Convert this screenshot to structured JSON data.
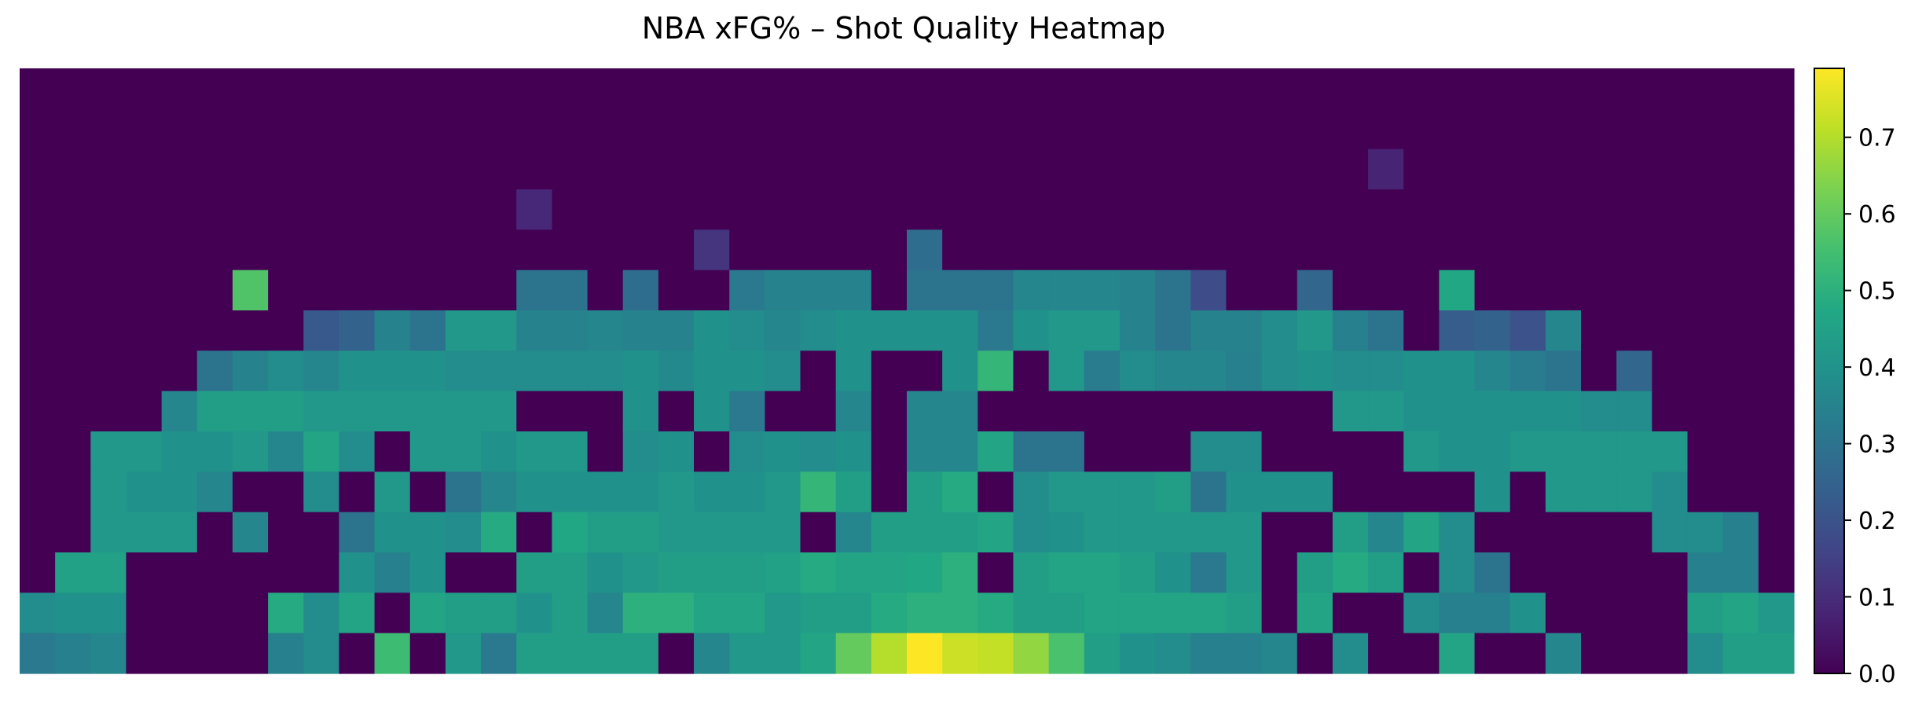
{
  "chart_data": {
    "type": "heatmap",
    "title": "NBA xFG% – Shot Quality Heatmap",
    "xlabel": "",
    "ylabel": "",
    "axes_visible": false,
    "grid": false,
    "colormap": "viridis",
    "value_range": [
      0.0,
      0.79
    ],
    "colorbar": {
      "placement": "right",
      "ticks": [
        0.0,
        0.1,
        0.2,
        0.3,
        0.4,
        0.5,
        0.6,
        0.7
      ],
      "tick_labels": [
        "0.0",
        "0.1",
        "0.2",
        "0.3",
        "0.4",
        "0.5",
        "0.6",
        "0.7"
      ]
    },
    "n_cols": 50,
    "n_rows": 15,
    "matrix": [
      [
        0,
        0,
        0,
        0,
        0,
        0,
        0,
        0,
        0,
        0,
        0,
        0,
        0,
        0,
        0,
        0,
        0,
        0,
        0,
        0,
        0,
        0,
        0,
        0,
        0,
        0,
        0,
        0,
        0,
        0,
        0,
        0,
        0,
        0,
        0,
        0,
        0,
        0,
        0,
        0,
        0,
        0,
        0,
        0,
        0,
        0,
        0,
        0,
        0,
        0
      ],
      [
        0,
        0,
        0,
        0,
        0,
        0,
        0,
        0,
        0,
        0,
        0,
        0,
        0,
        0,
        0,
        0,
        0,
        0,
        0,
        0,
        0,
        0,
        0,
        0,
        0,
        0,
        0,
        0,
        0,
        0,
        0,
        0,
        0,
        0,
        0,
        0,
        0,
        0,
        0,
        0,
        0,
        0,
        0,
        0,
        0,
        0,
        0,
        0,
        0,
        0
      ],
      [
        0,
        0,
        0,
        0,
        0,
        0,
        0,
        0,
        0,
        0,
        0,
        0,
        0,
        0,
        0,
        0,
        0,
        0,
        0,
        0,
        0,
        0,
        0,
        0,
        0,
        0,
        0,
        0,
        0,
        0,
        0,
        0,
        0,
        0,
        0,
        0,
        0,
        0,
        0.08,
        0,
        0,
        0,
        0,
        0,
        0,
        0,
        0,
        0,
        0,
        0
      ],
      [
        0,
        0,
        0,
        0,
        0,
        0,
        0,
        0,
        0,
        0,
        0,
        0,
        0,
        0,
        0.09,
        0,
        0,
        0,
        0,
        0,
        0,
        0,
        0,
        0,
        0,
        0,
        0,
        0,
        0,
        0,
        0,
        0,
        0,
        0,
        0,
        0,
        0,
        0,
        0,
        0,
        0,
        0,
        0,
        0,
        0,
        0,
        0,
        0,
        0,
        0
      ],
      [
        0,
        0,
        0,
        0,
        0,
        0,
        0,
        0,
        0,
        0,
        0,
        0,
        0,
        0,
        0,
        0,
        0,
        0,
        0,
        0.12,
        0,
        0,
        0,
        0,
        0,
        0.28,
        0,
        0,
        0,
        0,
        0,
        0,
        0,
        0,
        0,
        0,
        0,
        0,
        0,
        0,
        0,
        0,
        0,
        0,
        0,
        0,
        0,
        0,
        0,
        0
      ],
      [
        0,
        0,
        0,
        0,
        0,
        0,
        0.57,
        0,
        0,
        0,
        0,
        0,
        0,
        0,
        0.3,
        0.3,
        0,
        0.28,
        0,
        0,
        0.32,
        0.35,
        0.35,
        0.35,
        0,
        0.3,
        0.3,
        0.3,
        0.36,
        0.36,
        0.36,
        0.35,
        0.3,
        0.18,
        0,
        0,
        0.26,
        0,
        0,
        0,
        0.47,
        0,
        0,
        0,
        0,
        0,
        0,
        0,
        0,
        0
      ],
      [
        0,
        0,
        0,
        0,
        0,
        0,
        0,
        0,
        0.22,
        0.25,
        0.35,
        0.3,
        0.42,
        0.42,
        0.35,
        0.35,
        0.36,
        0.35,
        0.35,
        0.4,
        0.38,
        0.36,
        0.38,
        0.4,
        0.4,
        0.4,
        0.4,
        0.32,
        0.4,
        0.42,
        0.42,
        0.35,
        0.3,
        0.35,
        0.35,
        0.38,
        0.42,
        0.34,
        0.3,
        0,
        0.23,
        0.25,
        0.2,
        0.36,
        0,
        0,
        0,
        0,
        0,
        0
      ],
      [
        0,
        0,
        0,
        0,
        0,
        0.3,
        0.35,
        0.38,
        0.36,
        0.4,
        0.4,
        0.4,
        0.38,
        0.38,
        0.38,
        0.38,
        0.38,
        0.4,
        0.37,
        0.4,
        0.4,
        0.38,
        0,
        0.4,
        0,
        0,
        0.4,
        0.52,
        0,
        0.42,
        0.33,
        0.38,
        0.36,
        0.36,
        0.34,
        0.38,
        0.4,
        0.38,
        0.38,
        0.4,
        0.4,
        0.36,
        0.33,
        0.3,
        0,
        0.26,
        0,
        0,
        0,
        0
      ],
      [
        0,
        0,
        0,
        0,
        0.36,
        0.44,
        0.44,
        0.44,
        0.42,
        0.42,
        0.42,
        0.42,
        0.42,
        0.42,
        0,
        0,
        0,
        0.4,
        0,
        0.4,
        0.32,
        0,
        0,
        0.36,
        0,
        0.36,
        0.36,
        0,
        0,
        0,
        0,
        0,
        0,
        0,
        0,
        0,
        0,
        0.42,
        0.42,
        0.4,
        0.4,
        0.4,
        0.4,
        0.4,
        0.38,
        0.38,
        0,
        0,
        0,
        0
      ],
      [
        0,
        0,
        0.42,
        0.42,
        0.4,
        0.4,
        0.42,
        0.36,
        0.46,
        0.38,
        0,
        0.42,
        0.42,
        0.4,
        0.42,
        0.42,
        0,
        0.38,
        0.4,
        0,
        0.38,
        0.4,
        0.38,
        0.4,
        0,
        0.36,
        0.36,
        0.46,
        0.3,
        0.3,
        0,
        0,
        0,
        0.38,
        0.38,
        0,
        0,
        0,
        0,
        0.42,
        0.4,
        0.4,
        0.42,
        0.42,
        0.42,
        0.42,
        0.42,
        0,
        0,
        0
      ],
      [
        0,
        0,
        0.42,
        0.4,
        0.4,
        0.36,
        0,
        0,
        0.38,
        0,
        0.42,
        0,
        0.3,
        0.36,
        0.4,
        0.4,
        0.4,
        0.4,
        0.42,
        0.4,
        0.4,
        0.42,
        0.52,
        0.44,
        0,
        0.44,
        0.48,
        0,
        0.38,
        0.42,
        0.42,
        0.42,
        0.44,
        0.3,
        0.4,
        0.4,
        0.4,
        0,
        0,
        0,
        0,
        0.4,
        0,
        0.42,
        0.42,
        0.42,
        0.38,
        0,
        0,
        0
      ],
      [
        0,
        0,
        0.42,
        0.42,
        0.42,
        0,
        0.36,
        0,
        0,
        0.3,
        0.4,
        0.4,
        0.38,
        0.48,
        0,
        0.47,
        0.44,
        0.44,
        0.42,
        0.42,
        0.42,
        0.42,
        0,
        0.36,
        0.44,
        0.44,
        0.44,
        0.46,
        0.38,
        0.4,
        0.42,
        0.42,
        0.42,
        0.42,
        0.42,
        0,
        0,
        0.44,
        0.36,
        0.46,
        0.38,
        0,
        0,
        0,
        0,
        0,
        0.38,
        0.38,
        0.34,
        0
      ],
      [
        0,
        0.45,
        0.45,
        0,
        0,
        0,
        0,
        0,
        0,
        0.4,
        0.34,
        0.4,
        0,
        0,
        0.44,
        0.44,
        0.4,
        0.42,
        0.44,
        0.44,
        0.44,
        0.45,
        0.48,
        0.46,
        0.46,
        0.47,
        0.5,
        0,
        0.44,
        0.46,
        0.46,
        0.44,
        0.4,
        0.32,
        0.42,
        0,
        0.44,
        0.48,
        0.44,
        0,
        0.38,
        0.3,
        0,
        0,
        0,
        0,
        0,
        0.34,
        0.34,
        0
      ],
      [
        0.38,
        0.4,
        0.4,
        0,
        0,
        0,
        0,
        0.48,
        0.38,
        0.46,
        0,
        0.46,
        0.44,
        0.44,
        0.4,
        0.44,
        0.36,
        0.5,
        0.5,
        0.46,
        0.46,
        0.42,
        0.44,
        0.44,
        0.48,
        0.5,
        0.5,
        0.48,
        0.44,
        0.44,
        0.46,
        0.46,
        0.46,
        0.46,
        0.44,
        0,
        0.46,
        0,
        0,
        0.38,
        0.34,
        0.34,
        0.4,
        0,
        0,
        0,
        0,
        0.44,
        0.46,
        0.42
      ],
      [
        0.32,
        0.34,
        0.36,
        0,
        0,
        0,
        0,
        0.34,
        0.38,
        0,
        0.54,
        0,
        0.42,
        0.32,
        0.44,
        0.44,
        0.44,
        0.44,
        0,
        0.36,
        0.42,
        0.42,
        0.46,
        0.6,
        0.7,
        0.79,
        0.73,
        0.72,
        0.66,
        0.56,
        0.44,
        0.4,
        0.38,
        0.34,
        0.34,
        0.36,
        0,
        0.38,
        0,
        0,
        0.46,
        0,
        0,
        0.36,
        0,
        0,
        0,
        0.38,
        0.44,
        0.44
      ]
    ]
  }
}
